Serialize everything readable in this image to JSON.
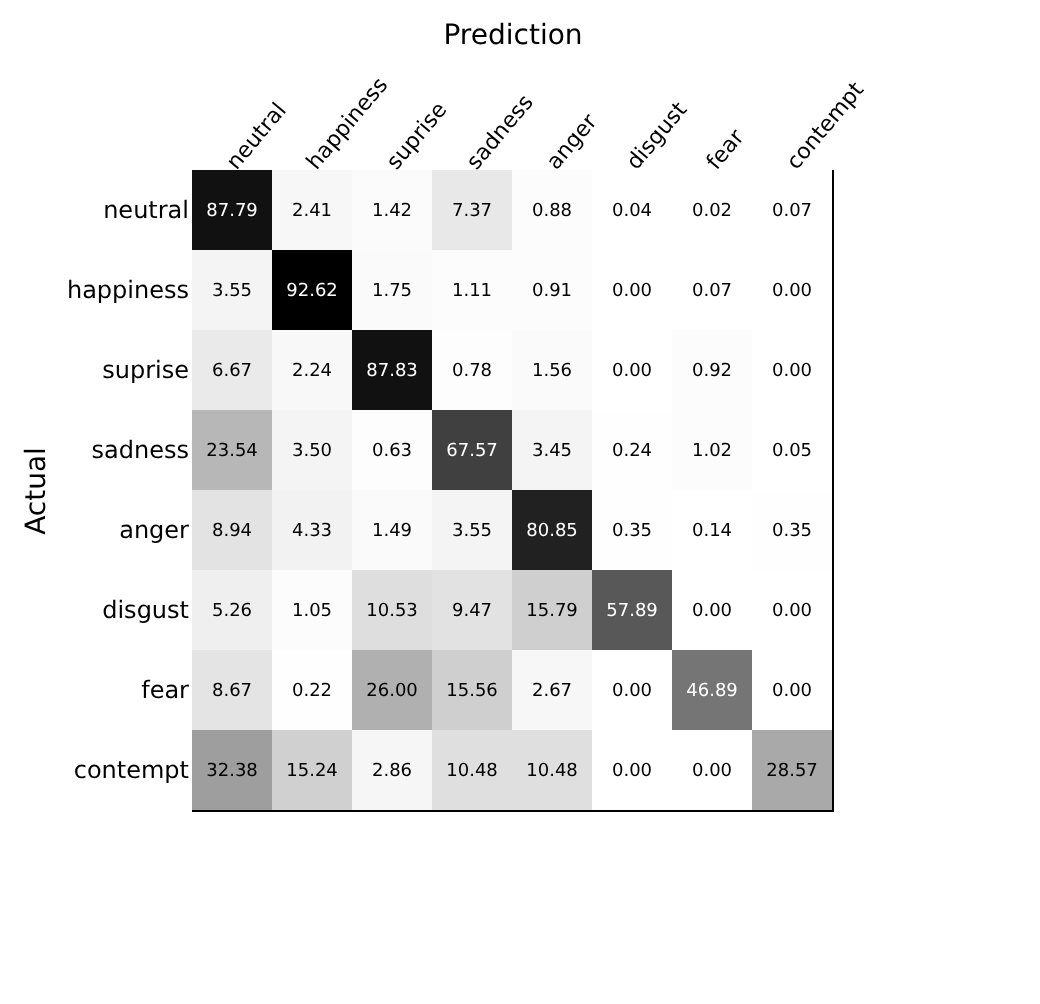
{
  "chart_data": {
    "type": "heatmap",
    "title": "Prediction",
    "data_labels": true,
    "ylabel": "Actual",
    "categories": [
      "neutral",
      "happiness",
      "suprise",
      "sadness",
      "anger",
      "disgust",
      "fear",
      "contempt"
    ],
    "y_categories": [
      "neutral",
      "happiness",
      "suprise",
      "sadness",
      "anger",
      "disgust",
      "fear",
      "contempt"
    ],
    "cells": [
      [
        87.79,
        2.41,
        1.42,
        7.37,
        0.88,
        0.04,
        0.02,
        0.07
      ],
      [
        3.55,
        92.62,
        1.75,
        1.11,
        0.91,
        0.0,
        0.07,
        0.0
      ],
      [
        6.67,
        2.24,
        87.83,
        0.78,
        1.56,
        0.0,
        0.92,
        0.0
      ],
      [
        23.54,
        3.5,
        0.63,
        67.57,
        3.45,
        0.24,
        1.02,
        0.05
      ],
      [
        8.94,
        4.33,
        1.49,
        3.55,
        80.85,
        0.35,
        0.14,
        0.35
      ],
      [
        5.26,
        1.05,
        10.53,
        9.47,
        15.79,
        57.89,
        0.0,
        0.0
      ],
      [
        8.67,
        0.22,
        26.0,
        15.56,
        2.67,
        0.0,
        46.89,
        0.0
      ],
      [
        32.38,
        15.24,
        2.86,
        10.48,
        10.48,
        0.0,
        0.0,
        28.57
      ]
    ],
    "cell_labels": [
      [
        "87.79",
        "2.41",
        "1.42",
        "7.37",
        "0.88",
        "0.04",
        "0.02",
        "0.07"
      ],
      [
        "3.55",
        "92.62",
        "1.75",
        "1.11",
        "0.91",
        "0.00",
        "0.07",
        "0.00"
      ],
      [
        "6.67",
        "2.24",
        "87.83",
        "0.78",
        "1.56",
        "0.00",
        "0.92",
        "0.00"
      ],
      [
        "23.54",
        "3.50",
        "0.63",
        "67.57",
        "3.45",
        "0.24",
        "1.02",
        "0.05"
      ],
      [
        "8.94",
        "4.33",
        "1.49",
        "3.55",
        "80.85",
        "0.35",
        "0.14",
        "0.35"
      ],
      [
        "5.26",
        "1.05",
        "10.53",
        "9.47",
        "15.79",
        "57.89",
        "0.00",
        "0.00"
      ],
      [
        "8.67",
        "0.22",
        "26.00",
        "15.56",
        "2.67",
        "0.00",
        "46.89",
        "0.00"
      ],
      [
        "32.38",
        "15.24",
        "2.86",
        "10.48",
        "10.48",
        "0.00",
        "0.00",
        "28.57"
      ]
    ]
  }
}
